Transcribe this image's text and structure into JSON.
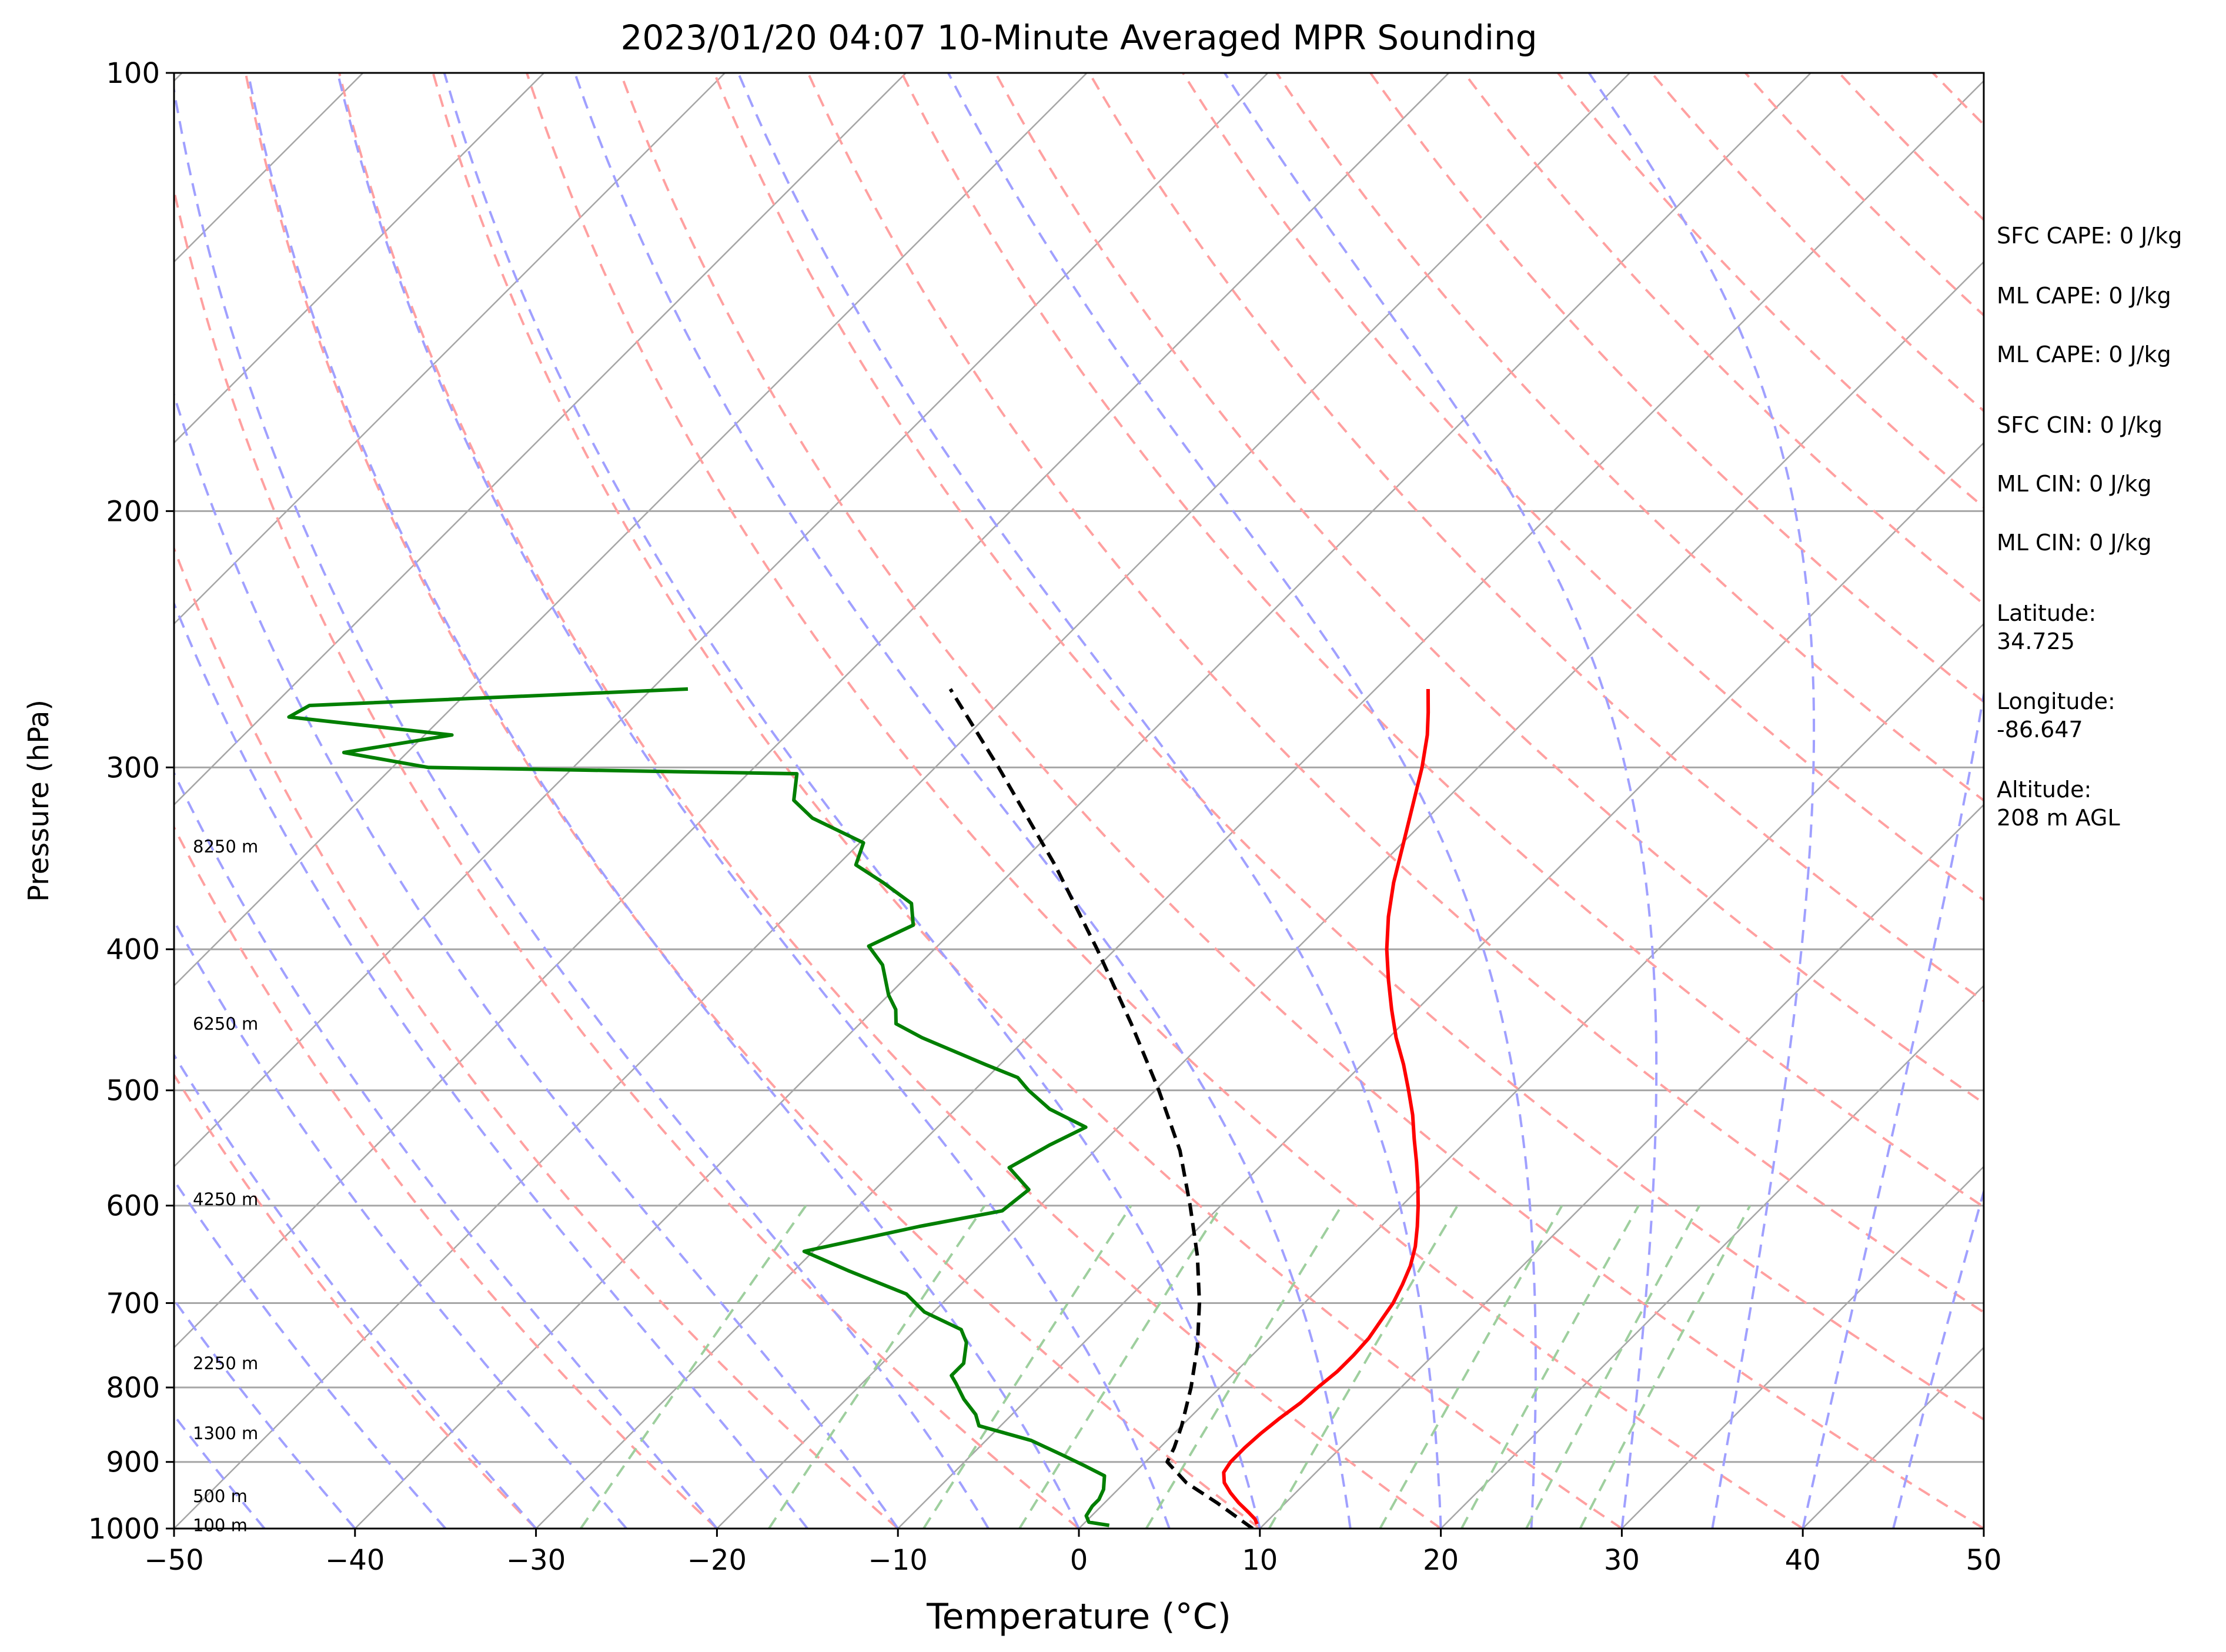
{
  "chart_data": {
    "type": "skew-t",
    "title": "2023/01/20 04:07 10-Minute Averaged MPR Sounding",
    "xlabel": "Temperature (°C)",
    "ylabel": "Pressure (hPa)",
    "xlim": [
      -50,
      50
    ],
    "ylim": [
      1000,
      100
    ],
    "y_scale": "log",
    "x_ticks": [
      -50,
      -40,
      -30,
      -20,
      -10,
      0,
      10,
      20,
      30,
      40,
      50
    ],
    "x_tick_labels": [
      "−50",
      "−40",
      "−30",
      "−20",
      "−10",
      "0",
      "10",
      "20",
      "30",
      "40",
      "50"
    ],
    "y_ticks": [
      1000,
      900,
      800,
      700,
      600,
      500,
      400,
      300,
      200,
      100
    ],
    "y_tick_labels": [
      "1000",
      "900",
      "800",
      "700",
      "600",
      "500",
      "400",
      "300",
      "200",
      "100"
    ],
    "grid": true,
    "skew": "isotherms slanted at 45 degrees",
    "background_lines": {
      "isotherms": {
        "color": "#a6a6a6",
        "values": [
          -160,
          -150,
          -140,
          -130,
          -120,
          -110,
          -100,
          -90,
          -80,
          -70,
          -60,
          -50,
          -40,
          -30,
          -20,
          -10,
          0,
          10,
          20,
          30,
          40,
          50
        ]
      },
      "dry_adiabats": {
        "color": "#ffa0a0",
        "theta_c": [
          -30,
          -20,
          -10,
          0,
          10,
          20,
          30,
          40,
          50,
          60,
          70,
          80,
          90,
          100,
          110,
          120,
          130,
          140,
          150,
          160,
          170,
          180,
          190,
          200
        ]
      },
      "moist_adiabats": {
        "color": "#a0a0ff",
        "t_start_c": [
          -45,
          -40,
          -35,
          -30,
          -25,
          -20,
          -15,
          -10,
          -5,
          0,
          5,
          10,
          15,
          20,
          25,
          30,
          35,
          40,
          45,
          50
        ]
      },
      "mixing_ratio_lines": {
        "color": "#9ecf9e",
        "g_per_kg": [
          0.4,
          1,
          2,
          3,
          5,
          8,
          12,
          16,
          20,
          24
        ],
        "top_hpa": 600
      }
    },
    "series": [
      {
        "color": "#ff0000",
        "points": [
          {
            "p": 993,
            "t": 9.6
          },
          {
            "p": 985,
            "t": 9.2
          },
          {
            "p": 975,
            "t": 8.5
          },
          {
            "p": 960,
            "t": 7.4
          },
          {
            "p": 945,
            "t": 6.4
          },
          {
            "p": 930,
            "t": 5.5
          },
          {
            "p": 915,
            "t": 4.9
          },
          {
            "p": 900,
            "t": 4.7
          },
          {
            "p": 880,
            "t": 4.7
          },
          {
            "p": 860,
            "t": 4.8
          },
          {
            "p": 840,
            "t": 5.0
          },
          {
            "p": 820,
            "t": 5.3
          },
          {
            "p": 800,
            "t": 5.4
          },
          {
            "p": 780,
            "t": 5.6
          },
          {
            "p": 760,
            "t": 5.6
          },
          {
            "p": 740,
            "t": 5.5
          },
          {
            "p": 720,
            "t": 5.2
          },
          {
            "p": 700,
            "t": 4.9
          },
          {
            "p": 680,
            "t": 4.4
          },
          {
            "p": 660,
            "t": 3.8
          },
          {
            "p": 640,
            "t": 3.0
          },
          {
            "p": 620,
            "t": 2.0
          },
          {
            "p": 600,
            "t": 0.9
          },
          {
            "p": 580,
            "t": -0.3
          },
          {
            "p": 560,
            "t": -1.6
          },
          {
            "p": 540,
            "t": -3.0
          },
          {
            "p": 520,
            "t": -4.4
          },
          {
            "p": 500,
            "t": -6.0
          },
          {
            "p": 480,
            "t": -7.7
          },
          {
            "p": 460,
            "t": -9.6
          },
          {
            "p": 440,
            "t": -11.4
          },
          {
            "p": 420,
            "t": -13.2
          },
          {
            "p": 400,
            "t": -15.0
          },
          {
            "p": 380,
            "t": -16.7
          },
          {
            "p": 360,
            "t": -18.3
          },
          {
            "p": 340,
            "t": -19.8
          },
          {
            "p": 320,
            "t": -21.4
          },
          {
            "p": 300,
            "t": -23.1
          },
          {
            "p": 285,
            "t": -24.6
          },
          {
            "p": 275,
            "t": -25.8
          },
          {
            "p": 265,
            "t": -27.1
          }
        ]
      },
      {
        "color": "#007f00",
        "points": [
          {
            "p": 995,
            "t": 1.5
          },
          {
            "p": 990,
            "t": 0.2
          },
          {
            "p": 980,
            "t": -0.3
          },
          {
            "p": 965,
            "t": -0.5
          },
          {
            "p": 955,
            "t": -0.5
          },
          {
            "p": 940,
            "t": -0.8
          },
          {
            "p": 920,
            "t": -1.5
          },
          {
            "p": 905,
            "t": -3.2
          },
          {
            "p": 890,
            "t": -5.0
          },
          {
            "p": 870,
            "t": -7.5
          },
          {
            "p": 850,
            "t": -11.2
          },
          {
            "p": 835,
            "t": -12.0
          },
          {
            "p": 815,
            "t": -13.5
          },
          {
            "p": 795,
            "t": -14.8
          },
          {
            "p": 785,
            "t": -15.5
          },
          {
            "p": 770,
            "t": -15.5
          },
          {
            "p": 745,
            "t": -16.5
          },
          {
            "p": 730,
            "t": -17.5
          },
          {
            "p": 710,
            "t": -20.5
          },
          {
            "p": 690,
            "t": -22.5
          },
          {
            "p": 665,
            "t": -27.0
          },
          {
            "p": 645,
            "t": -30.5
          },
          {
            "p": 620,
            "t": -25.5
          },
          {
            "p": 605,
            "t": -21.8
          },
          {
            "p": 585,
            "t": -21.5
          },
          {
            "p": 565,
            "t": -23.8
          },
          {
            "p": 545,
            "t": -22.8
          },
          {
            "p": 530,
            "t": -21.8
          },
          {
            "p": 515,
            "t": -24.8
          },
          {
            "p": 500,
            "t": -27.0
          },
          {
            "p": 490,
            "t": -28.3
          },
          {
            "p": 480,
            "t": -30.8
          },
          {
            "p": 460,
            "t": -35.8
          },
          {
            "p": 450,
            "t": -38.0
          },
          {
            "p": 440,
            "t": -38.8
          },
          {
            "p": 430,
            "t": -40.0
          },
          {
            "p": 410,
            "t": -42.0
          },
          {
            "p": 398,
            "t": -43.8
          },
          {
            "p": 385,
            "t": -42.5
          },
          {
            "p": 372,
            "t": -43.8
          },
          {
            "p": 360,
            "t": -46.5
          },
          {
            "p": 350,
            "t": -49.0
          },
          {
            "p": 338,
            "t": -49.8
          },
          {
            "p": 325,
            "t": -54.0
          },
          {
            "p": 316,
            "t": -56.0
          },
          {
            "p": 303,
            "t": -57.3
          },
          {
            "p": 300,
            "t": -78.0
          },
          {
            "p": 293,
            "t": -83.5
          },
          {
            "p": 285,
            "t": -78.5
          },
          {
            "p": 277,
            "t": -88.5
          },
          {
            "p": 272,
            "t": -88.0
          },
          {
            "p": 265,
            "t": -68.0
          }
        ]
      },
      {
        "color": "#000000",
        "dashed": true,
        "points": [
          {
            "p": 1000,
            "t": 9.6
          },
          {
            "p": 960,
            "t": 6.2
          },
          {
            "p": 930,
            "t": 3.4
          },
          {
            "p": 900,
            "t": 1.2
          },
          {
            "p": 880,
            "t": 0.8
          },
          {
            "p": 850,
            "t": 0.0
          },
          {
            "p": 800,
            "t": -1.6
          },
          {
            "p": 750,
            "t": -3.5
          },
          {
            "p": 700,
            "t": -5.8
          },
          {
            "p": 650,
            "t": -8.5
          },
          {
            "p": 600,
            "t": -11.7
          },
          {
            "p": 550,
            "t": -15.3
          },
          {
            "p": 500,
            "t": -19.8
          },
          {
            "p": 450,
            "t": -25.0
          },
          {
            "p": 400,
            "t": -31.0
          },
          {
            "p": 350,
            "t": -38.0
          },
          {
            "p": 300,
            "t": -46.5
          },
          {
            "p": 265,
            "t": -53.5
          }
        ]
      }
    ],
    "height_labels": [
      {
        "text": "100 m",
        "p": 995
      },
      {
        "text": "500 m",
        "p": 950
      },
      {
        "text": "1300 m",
        "p": 860
      },
      {
        "text": "2250 m",
        "p": 770
      },
      {
        "text": "4250 m",
        "p": 594
      },
      {
        "text": "6250 m",
        "p": 450
      },
      {
        "text": "8250 m",
        "p": 340
      }
    ],
    "annotations": [
      {
        "lines": [
          "SFC CAPE: 0 J/kg"
        ]
      },
      {
        "lines": [
          "ML CAPE: 0 J/kg"
        ]
      },
      {
        "lines": [
          "ML CAPE: 0 J/kg"
        ]
      },
      {
        "lines": [
          "SFC CIN: 0 J/kg"
        ]
      },
      {
        "lines": [
          "ML CIN: 0 J/kg"
        ]
      },
      {
        "lines": [
          "ML CIN: 0 J/kg"
        ]
      },
      {
        "lines": [
          "Latitude:",
          "34.725"
        ]
      },
      {
        "lines": [
          "Longitude:",
          "-86.647"
        ]
      },
      {
        "lines": [
          "Altitude:",
          "208 m AGL"
        ]
      }
    ]
  }
}
